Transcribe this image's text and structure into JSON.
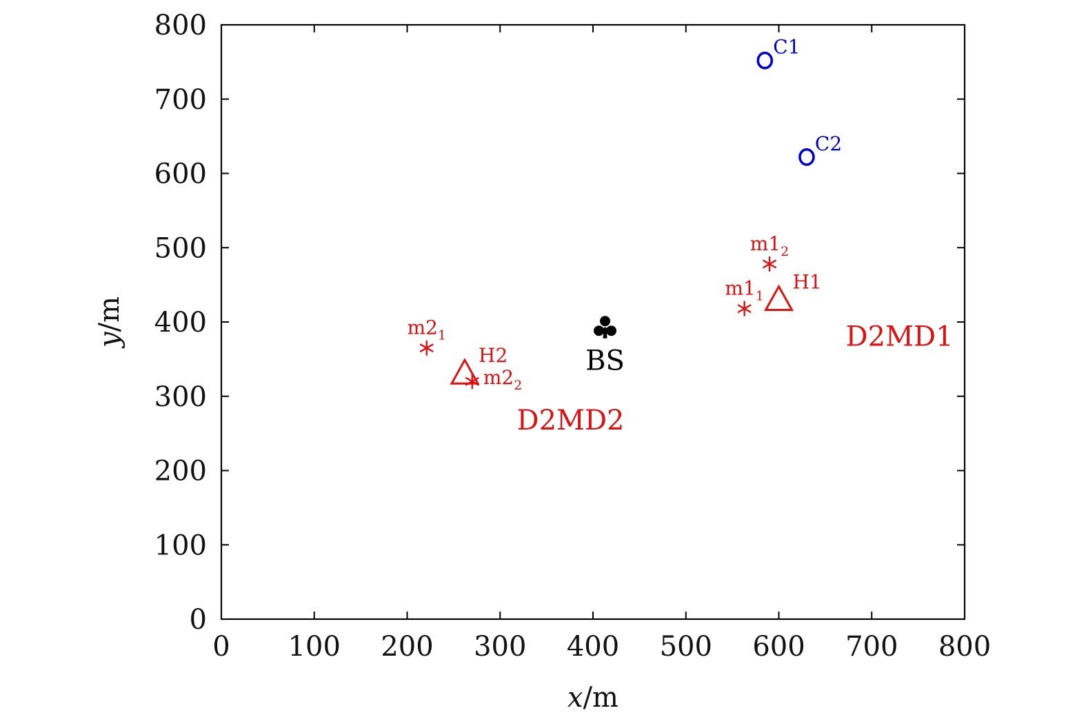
{
  "chart_data": {
    "type": "scatter",
    "xlabel": "x/m",
    "xlabel_var": "x",
    "xlabel_unit": "/m",
    "ylabel": "y/m",
    "ylabel_var": "y",
    "ylabel_unit": "/m",
    "xlim": [
      0,
      800
    ],
    "ylim": [
      0,
      800
    ],
    "xticks": [
      0,
      100,
      200,
      300,
      400,
      500,
      600,
      700,
      800
    ],
    "yticks": [
      0,
      100,
      200,
      300,
      400,
      500,
      600,
      700,
      800
    ],
    "grid": false,
    "points": [
      {
        "id": "c1",
        "x": 585,
        "y": 752,
        "marker": "circle",
        "color": "#0000cc",
        "label": "C1",
        "label_pos": "superscript"
      },
      {
        "id": "c2",
        "x": 630,
        "y": 622,
        "marker": "circle",
        "color": "#0000cc",
        "label": "C2",
        "label_pos": "superscript"
      },
      {
        "id": "m1-2",
        "x": 590,
        "y": 478,
        "marker": "asterisk",
        "color": "#dd1111",
        "label": "m1",
        "label_sub": "2",
        "label_pos": "above"
      },
      {
        "id": "m1-1",
        "x": 563,
        "y": 418,
        "marker": "asterisk",
        "color": "#dd1111",
        "label": "m1",
        "label_sub": "1",
        "label_pos": "above"
      },
      {
        "id": "h1",
        "x": 600,
        "y": 432,
        "marker": "triangle",
        "color": "#dd1111",
        "label": "H1",
        "label_pos": "superscript"
      },
      {
        "id": "bs",
        "x": 413,
        "y": 391,
        "marker": "club",
        "color": "#000000",
        "label": "BS",
        "label_pos": "below"
      },
      {
        "id": "m2-1",
        "x": 221,
        "y": 365,
        "marker": "asterisk",
        "color": "#dd1111",
        "label": "m2",
        "label_sub": "1",
        "label_pos": "above"
      },
      {
        "id": "h2",
        "x": 262,
        "y": 333,
        "marker": "triangle",
        "color": "#dd1111",
        "label": "H2",
        "label_pos": "superscript"
      },
      {
        "id": "m2-2",
        "x": 270,
        "y": 320,
        "marker": "asterisk",
        "color": "#dd1111",
        "label": "m2",
        "label_sub": "2",
        "label_pos": "right"
      }
    ],
    "annotations": [
      {
        "id": "d2md1",
        "text": "D2MD1",
        "x": 672,
        "y": 381,
        "color": "#dd1111"
      },
      {
        "id": "d2md2",
        "text": "D2MD2",
        "x": 318,
        "y": 268,
        "color": "#dd1111"
      }
    ]
  }
}
